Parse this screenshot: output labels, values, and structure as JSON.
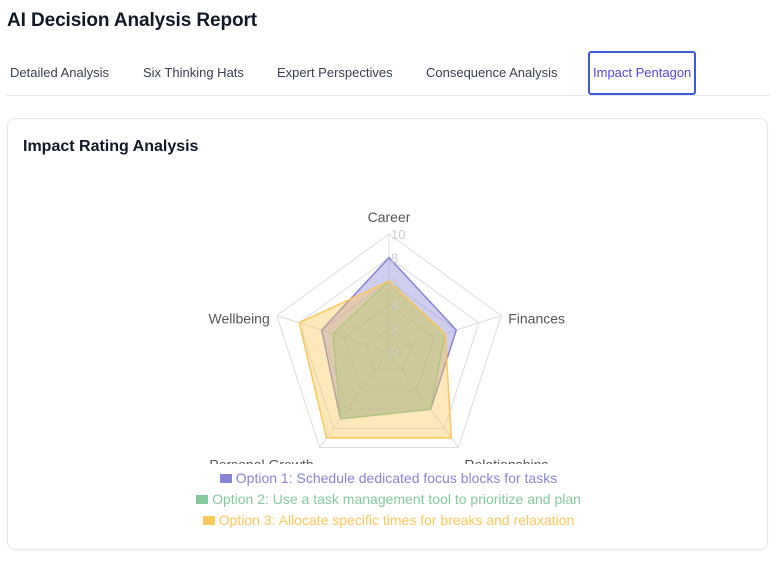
{
  "header": {
    "title": "AI Decision Analysis Report"
  },
  "tabs": [
    {
      "label": "Detailed Analysis",
      "active": false
    },
    {
      "label": "Six Thinking Hats",
      "active": false
    },
    {
      "label": "Expert Perspectives",
      "active": false
    },
    {
      "label": "Consequence Analysis",
      "active": false
    },
    {
      "label": "Impact Pentagon",
      "active": true
    }
  ],
  "card": {
    "title": "Impact Rating Analysis"
  },
  "colors": {
    "accent": "#4f46e5",
    "option1": "#8884d8",
    "option2": "#82ca9d",
    "option3": "#ffc658"
  },
  "chart_data": {
    "type": "radar",
    "title": "Impact Rating Analysis",
    "axes": [
      "Career",
      "Finances",
      "Relationships",
      "Personal Growth",
      "Wellbeing"
    ],
    "range": [
      0,
      10
    ],
    "ticks": [
      "0",
      "2",
      "4",
      "6",
      "8",
      "10"
    ],
    "grid": true,
    "legend_position": "bottom",
    "series": [
      {
        "name": "Option 1: Schedule dedicated focus blocks for tasks",
        "color": "#8884d8",
        "values": [
          8,
          6,
          6,
          7,
          6
        ]
      },
      {
        "name": "Option 2: Use a task management tool to prioritize and plan",
        "color": "#82ca9d",
        "values": [
          6,
          5,
          6,
          7,
          5
        ]
      },
      {
        "name": "Option 3: Allocate specific times for breaks and relaxation",
        "color": "#ffc658",
        "values": [
          6,
          5,
          9,
          9,
          8
        ]
      }
    ]
  }
}
